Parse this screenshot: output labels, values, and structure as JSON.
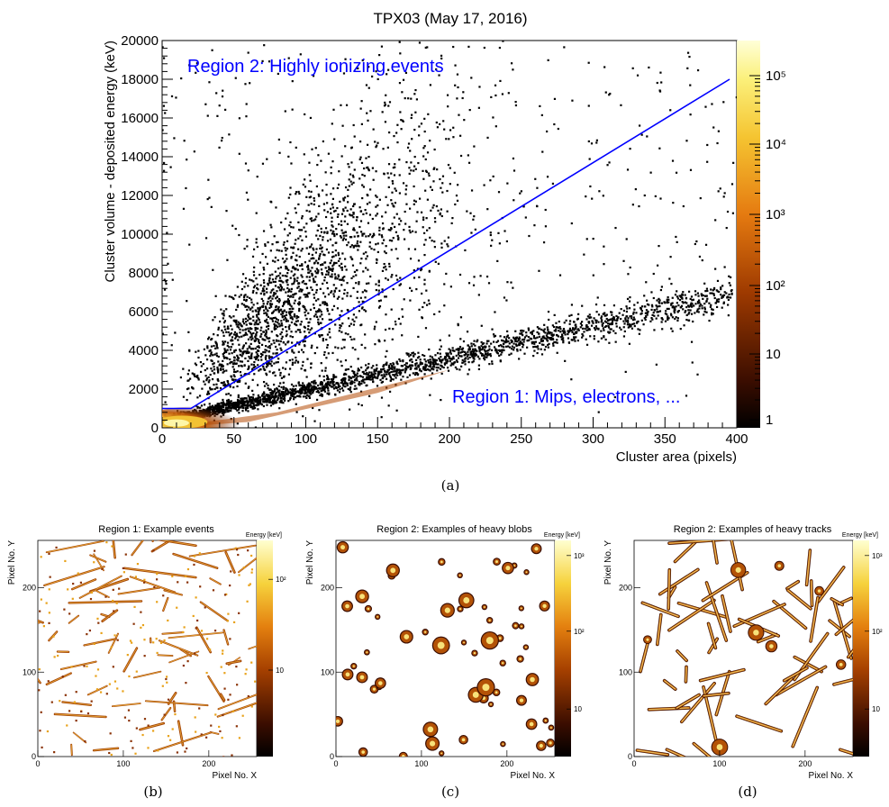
{
  "chart_data": [
    {
      "type": "heatmap",
      "title": "TPX03 (May 17, 2016)",
      "xlabel": "Cluster area (pixels)",
      "ylabel": "Cluster volume - deposited energy (keV)",
      "xlim": [
        0,
        400
      ],
      "ylim": [
        0,
        20000
      ],
      "x_ticks": [
        0,
        50,
        100,
        150,
        200,
        250,
        300,
        350,
        400
      ],
      "y_ticks": [
        0,
        2000,
        4000,
        6000,
        8000,
        10000,
        12000,
        14000,
        16000,
        18000,
        20000
      ],
      "z_scale": "log",
      "z_ticks": [
        "1",
        "10",
        "10²",
        "10³",
        "10⁴",
        "10⁵"
      ],
      "separator_line": {
        "x": [
          0,
          20,
          395
        ],
        "y": [
          1000,
          1000,
          18000
        ]
      },
      "annotations": [
        "Region 2: Highly ionizing events",
        "Region 1: Mips, electrons, ..."
      ],
      "caption": "(a)",
      "colors": {
        "line": "#0000ff",
        "annotation": "#0000ff"
      }
    },
    {
      "type": "heatmap",
      "title": "Region 1: Example events",
      "xlabel": "Pixel No. X",
      "ylabel": "Pixel No. Y",
      "zlabel": "Energy [keV]",
      "xlim": [
        0,
        256
      ],
      "ylim": [
        0,
        256
      ],
      "x_ticks": [
        0,
        100,
        200
      ],
      "y_ticks": [
        0,
        100,
        200
      ],
      "z_ticks": [
        "10",
        "10²"
      ],
      "caption": "(b)"
    },
    {
      "type": "heatmap",
      "title": "Region 2: Examples of heavy blobs",
      "xlabel": "Pixel No. X",
      "ylabel": "Pixel No. Y",
      "zlabel": "Energy [keV]",
      "xlim": [
        0,
        256
      ],
      "ylim": [
        0,
        256
      ],
      "x_ticks": [
        0,
        100,
        200
      ],
      "y_ticks": [
        0,
        100,
        200
      ],
      "z_ticks": [
        "10",
        "10²",
        "10³"
      ],
      "caption": "(c)"
    },
    {
      "type": "heatmap",
      "title": "Region 2: Examples of heavy tracks",
      "xlabel": "Pixel No. X",
      "ylabel": "Pixel No. Y",
      "zlabel": "Energy [keV]",
      "xlim": [
        0,
        256
      ],
      "ylim": [
        0,
        256
      ],
      "x_ticks": [
        0,
        100,
        200
      ],
      "y_ticks": [
        0,
        100,
        200
      ],
      "z_ticks": [
        "10",
        "10²",
        "10³"
      ],
      "caption": "(d)"
    }
  ]
}
